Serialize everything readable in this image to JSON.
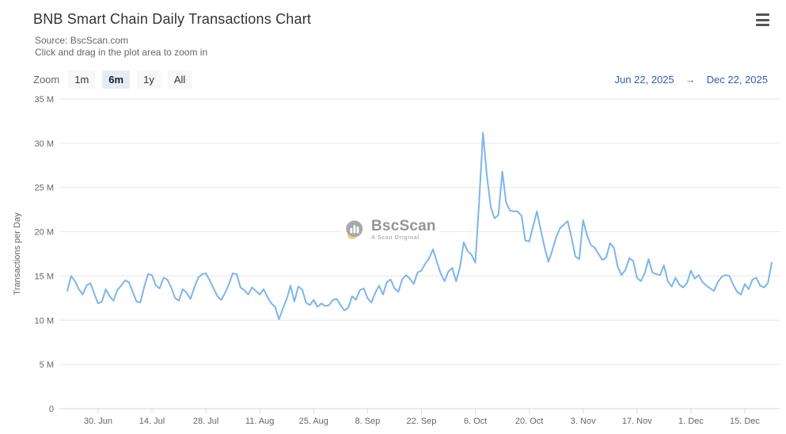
{
  "header": {
    "title": "BNB Smart Chain Daily Transactions Chart",
    "subtitle_source": "Source: BscScan.com",
    "subtitle_hint": "Click and drag in the plot area to zoom in"
  },
  "range_selector": {
    "zoom_label": "Zoom",
    "buttons": [
      {
        "label": "1m",
        "selected": false
      },
      {
        "label": "6m",
        "selected": true
      },
      {
        "label": "1y",
        "selected": false
      },
      {
        "label": "All",
        "selected": false
      }
    ],
    "from_date": "Jun 22, 2025",
    "arrow": "→",
    "to_date": "Dec 22, 2025"
  },
  "watermark": {
    "name": "BscScan",
    "tagline": "A Scan Original"
  },
  "colors": {
    "line": "#7cb5ec",
    "grid": "#e6e6e6",
    "axis_line": "#ccd6eb",
    "axis_label": "#666666",
    "title_text": "#333333",
    "range_text": "#335cad",
    "button_bg": "#f7f7f7",
    "button_selected_bg": "#e6ebf5",
    "watermark_gray": "#9b9da0",
    "watermark_yellow": "#f0c24b"
  },
  "chart_data": {
    "type": "line",
    "title": "BNB Smart Chain Daily Transactions Chart",
    "xlabel": "",
    "ylabel": "Transactions per Day",
    "ylim": [
      0,
      35000000
    ],
    "grid": true,
    "legend": false,
    "x_start_date": "Jun 22, 2025",
    "x_end_date": "Dec 22, 2025",
    "x_interval": "daily",
    "y_tick_labels": [
      "0",
      "5 M",
      "10 M",
      "15 M",
      "20 M",
      "25 M",
      "30 M",
      "35 M"
    ],
    "y_tick_values_millions": [
      0,
      5,
      10,
      15,
      20,
      25,
      30,
      35
    ],
    "x_tick_labels": [
      "30. Jun",
      "14. Jul",
      "28. Jul",
      "11. Aug",
      "25. Aug",
      "8. Sep",
      "22. Sep",
      "6. Oct",
      "20. Oct",
      "3. Nov",
      "17. Nov",
      "1. Dec",
      "15. Dec"
    ],
    "x_tick_day_indices": [
      8,
      22,
      36,
      50,
      64,
      78,
      92,
      106,
      120,
      134,
      148,
      162,
      176
    ],
    "unit": "millions of transactions per day",
    "values_millions": [
      13.3,
      15.0,
      14.4,
      13.5,
      12.9,
      13.9,
      14.2,
      13.0,
      11.9,
      12.1,
      13.5,
      12.7,
      12.2,
      13.4,
      13.9,
      14.5,
      14.3,
      13.2,
      12.1,
      12.0,
      13.8,
      15.2,
      15.1,
      13.9,
      13.6,
      14.8,
      14.6,
      13.7,
      12.5,
      12.2,
      13.5,
      13.1,
      12.4,
      13.7,
      14.8,
      15.2,
      15.3,
      14.5,
      13.6,
      12.7,
      12.3,
      13.1,
      14.1,
      15.3,
      15.2,
      13.7,
      13.4,
      12.9,
      13.7,
      13.3,
      12.9,
      13.5,
      12.6,
      11.9,
      11.5,
      10.1,
      11.3,
      12.4,
      13.9,
      12.1,
      13.8,
      13.5,
      12.0,
      11.7,
      12.3,
      11.5,
      11.9,
      11.6,
      11.7,
      12.3,
      12.4,
      11.7,
      11.1,
      11.4,
      12.7,
      12.3,
      13.4,
      13.6,
      12.5,
      12.0,
      13.1,
      13.9,
      12.9,
      14.3,
      14.6,
      13.6,
      13.2,
      14.6,
      15.1,
      14.7,
      14.1,
      15.4,
      15.6,
      16.4,
      17.0,
      18.0,
      16.6,
      15.3,
      14.4,
      15.5,
      15.9,
      14.4,
      16.0,
      18.8,
      17.8,
      17.4,
      16.5,
      23.5,
      31.2,
      26.3,
      22.8,
      21.5,
      21.9,
      26.8,
      23.3,
      22.4,
      22.3,
      22.3,
      21.8,
      19.0,
      18.9,
      20.6,
      22.3,
      20.2,
      18.2,
      16.6,
      17.9,
      19.4,
      20.4,
      20.8,
      21.2,
      19.3,
      17.2,
      16.9,
      21.3,
      19.6,
      18.5,
      18.2,
      17.5,
      16.8,
      17.1,
      18.7,
      18.2,
      16.0,
      15.1,
      15.7,
      17.0,
      16.7,
      14.8,
      14.4,
      15.3,
      16.9,
      15.4,
      15.2,
      15.1,
      16.2,
      14.4,
      13.8,
      14.8,
      14.0,
      13.7,
      14.2,
      15.6,
      14.7,
      15.1,
      14.3,
      13.9,
      13.6,
      13.3,
      14.3,
      14.9,
      15.1,
      15.0,
      14.0,
      13.2,
      12.9,
      14.1,
      13.5,
      14.6,
      14.8,
      13.9,
      13.7,
      14.2,
      16.5
    ]
  }
}
